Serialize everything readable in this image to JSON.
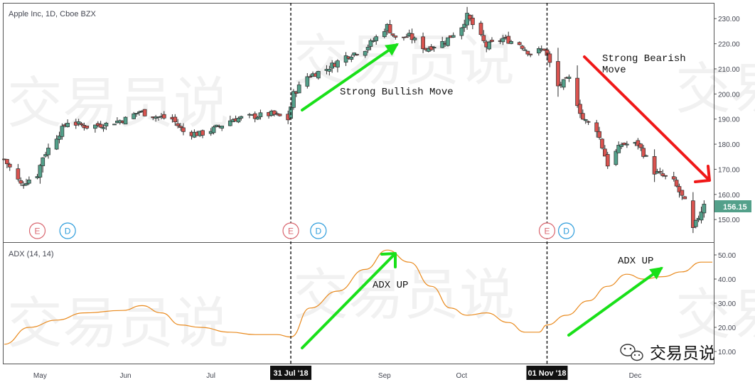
{
  "header": {
    "title": "Apple Inc, 1D, Cboe BZX"
  },
  "indicator": {
    "title": "ADX (14, 14)"
  },
  "watermark": {
    "text": "交易员说"
  },
  "brand": {
    "text": "交易员说"
  },
  "price_badge": {
    "value": "156.15"
  },
  "markers": [
    {
      "letter": "E",
      "kind": "earnings",
      "date": "2018-04-30"
    },
    {
      "letter": "D",
      "kind": "dividend",
      "date": "2018-05-11"
    },
    {
      "letter": "E",
      "kind": "earnings",
      "date": "2018-07-31"
    },
    {
      "letter": "D",
      "kind": "dividend",
      "date": "2018-08-10"
    },
    {
      "letter": "E",
      "kind": "earnings",
      "date": "2018-11-01"
    },
    {
      "letter": "D",
      "kind": "dividend",
      "date": "2018-11-08"
    }
  ],
  "events": [
    {
      "label": "31 Jul '18",
      "date": "2018-07-31"
    },
    {
      "label": "01 Nov '18",
      "date": "2018-11-01"
    }
  ],
  "annotations": {
    "bullish": "Strong Bullish Move",
    "bearish_line1": "Strong Bearish",
    "bearish_line2": "Move",
    "adx_up_1": "ADX UP",
    "adx_up_2": "ADX UP"
  },
  "colors": {
    "up": "#53A08A",
    "down": "#D9534F",
    "adx": "#E98A1E",
    "arrow_green": "#19E019",
    "arrow_red": "#F01818",
    "badge": "#53A08A",
    "earnings": "#D9666F",
    "dividend": "#2C9CDB"
  },
  "chart_data": [
    {
      "type": "candlestick",
      "title": "Apple Inc, 1D, Cboe BZX",
      "x_range": [
        "2018-04-18",
        "2018-12-31"
      ],
      "ylim": [
        141,
        236
      ],
      "y_ticks": [
        150,
        160,
        170,
        180,
        190,
        200,
        210,
        220,
        230
      ],
      "x_ticks": [
        {
          "label": "May",
          "date": "2018-05-01"
        },
        {
          "label": "Jun",
          "date": "2018-06-01"
        },
        {
          "label": "Jul",
          "date": "2018-07-02"
        },
        {
          "label": "Sep",
          "date": "2018-09-03"
        },
        {
          "label": "Oct",
          "date": "2018-10-01"
        },
        {
          "label": "Dec",
          "date": "2018-12-03"
        }
      ],
      "last_price": 156.15,
      "control_points": [
        [
          "2018-04-18",
          174
        ],
        [
          "2018-04-24",
          164
        ],
        [
          "2018-04-30",
          168
        ],
        [
          "2018-05-02",
          175
        ],
        [
          "2018-05-07",
          183
        ],
        [
          "2018-05-11",
          189
        ],
        [
          "2018-05-18",
          187
        ],
        [
          "2018-05-25",
          188
        ],
        [
          "2018-06-01",
          190
        ],
        [
          "2018-06-06",
          193
        ],
        [
          "2018-06-12",
          191
        ],
        [
          "2018-06-18",
          190
        ],
        [
          "2018-06-22",
          185
        ],
        [
          "2018-06-28",
          184
        ],
        [
          "2018-07-03",
          186
        ],
        [
          "2018-07-10",
          190
        ],
        [
          "2018-07-17",
          191
        ],
        [
          "2018-07-24",
          192
        ],
        [
          "2018-07-30",
          190
        ],
        [
          "2018-08-01",
          200
        ],
        [
          "2018-08-06",
          207
        ],
        [
          "2018-08-13",
          210
        ],
        [
          "2018-08-20",
          215
        ],
        [
          "2018-08-27",
          218
        ],
        [
          "2018-09-04",
          227
        ],
        [
          "2018-09-07",
          222
        ],
        [
          "2018-09-12",
          223
        ],
        [
          "2018-09-18",
          218
        ],
        [
          "2018-09-25",
          221
        ],
        [
          "2018-10-01",
          227
        ],
        [
          "2018-10-03",
          231
        ],
        [
          "2018-10-10",
          219
        ],
        [
          "2018-10-16",
          222
        ],
        [
          "2018-10-22",
          220
        ],
        [
          "2018-10-26",
          216
        ],
        [
          "2018-10-31",
          218
        ],
        [
          "2018-11-05",
          203
        ],
        [
          "2018-11-09",
          206
        ],
        [
          "2018-11-14",
          190
        ],
        [
          "2018-11-19",
          186
        ],
        [
          "2018-11-23",
          172
        ],
        [
          "2018-11-28",
          180
        ],
        [
          "2018-12-04",
          180
        ],
        [
          "2018-12-10",
          169
        ],
        [
          "2018-12-17",
          165
        ],
        [
          "2018-12-21",
          157
        ],
        [
          "2018-12-24",
          146
        ],
        [
          "2018-12-28",
          156.15
        ]
      ]
    },
    {
      "type": "line",
      "title": "ADX (14, 14)",
      "series": [
        {
          "name": "ADX (14, 14)",
          "x": [
            "2018-04-18",
            "2018-04-27",
            "2018-05-07",
            "2018-05-17",
            "2018-05-31",
            "2018-06-07",
            "2018-06-14",
            "2018-06-21",
            "2018-06-28",
            "2018-07-09",
            "2018-07-18",
            "2018-07-26",
            "2018-07-31",
            "2018-08-07",
            "2018-08-17",
            "2018-08-27",
            "2018-09-04",
            "2018-09-12",
            "2018-09-20",
            "2018-09-27",
            "2018-10-03",
            "2018-10-10",
            "2018-10-18",
            "2018-10-24",
            "2018-10-29",
            "2018-11-01",
            "2018-11-08",
            "2018-11-16",
            "2018-11-23",
            "2018-11-30",
            "2018-12-06",
            "2018-12-13",
            "2018-12-20",
            "2018-12-27",
            "2018-12-31"
          ],
          "values": [
            13,
            20,
            23,
            26,
            27,
            29,
            26,
            21,
            20,
            18,
            17,
            17,
            16,
            28,
            35,
            44,
            52,
            47,
            37,
            28,
            25,
            26,
            22,
            18,
            18,
            21,
            25,
            31,
            37,
            42,
            40,
            41,
            43,
            47,
            47
          ]
        }
      ],
      "ylim": [
        5,
        55
      ],
      "y_ticks": [
        10,
        20,
        30,
        40,
        50
      ]
    }
  ]
}
